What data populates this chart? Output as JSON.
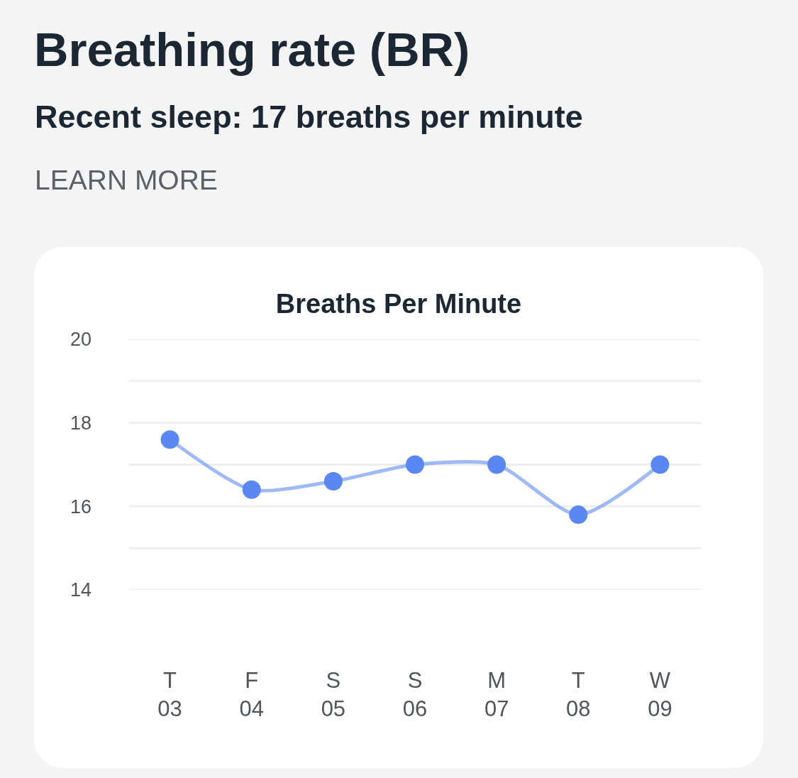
{
  "chart_data": {
    "type": "line",
    "title": "Breathing rate (BR)",
    "subtitle": "Recent sleep: 17 breaths per minute",
    "annotations": [
      "LEARN MORE"
    ],
    "ylabel": "Breaths Per Minute",
    "categories": [
      "T\n03",
      "F\n04",
      "S\n05",
      "S\n06",
      "M\n07",
      "T\n08",
      "W\n09"
    ],
    "values": [
      17.6,
      16.4,
      16.6,
      17.0,
      17.0,
      15.8,
      17.0
    ],
    "color": "#5b87f2",
    "ylim": [
      14,
      20
    ],
    "yticks": [
      14,
      {
        "value": 15,
        "label": null
      },
      16,
      {
        "value": 17,
        "label": null
      },
      18,
      {
        "value": 19,
        "label": null
      },
      20
    ],
    "grid": "y",
    "marker": "circle",
    "line_style": "solid",
    "legend": false
  }
}
